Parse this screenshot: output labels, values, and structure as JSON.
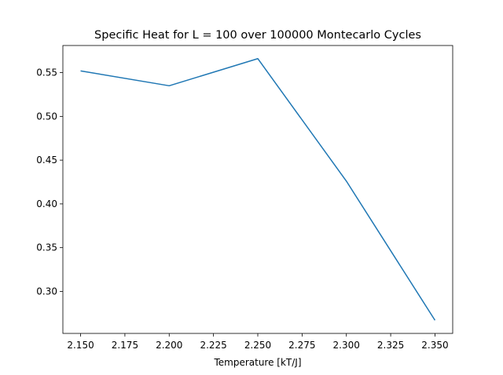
{
  "chart_data": {
    "type": "line",
    "title": "Specific Heat for L = 100 over 100000 Montecarlo Cycles",
    "xlabel": "Temperature [kT/J]",
    "ylabel": "",
    "x": [
      2.15,
      2.2,
      2.25,
      2.3,
      2.35
    ],
    "series": [
      {
        "values": [
          0.552,
          0.535,
          0.566,
          0.426,
          0.267
        ],
        "color": "#1f77b4"
      }
    ],
    "xlim": [
      2.14,
      2.36
    ],
    "ylim": [
      0.252,
      0.581
    ],
    "xticks": [
      "2.150",
      "2.175",
      "2.200",
      "2.225",
      "2.250",
      "2.275",
      "2.300",
      "2.325",
      "2.350"
    ],
    "yticks": [
      "0.30",
      "0.35",
      "0.40",
      "0.45",
      "0.50",
      "0.55"
    ],
    "grid": false,
    "legend": "none"
  }
}
